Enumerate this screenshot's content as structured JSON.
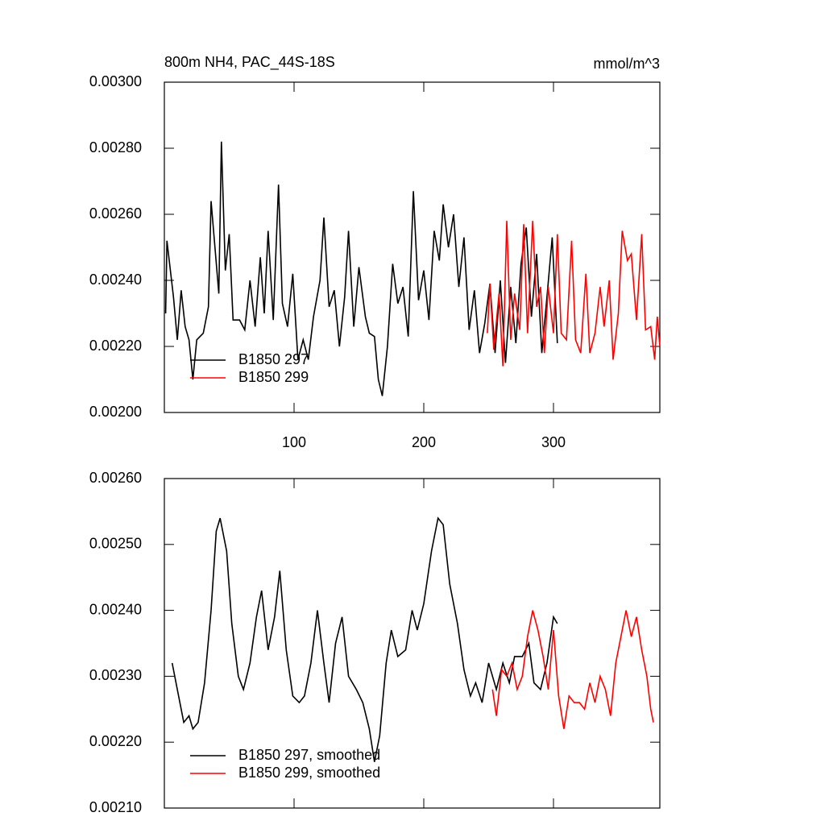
{
  "chart_data": [
    {
      "type": "line",
      "title": "800m NH4, PAC_44S-18S",
      "units": "mmol/m^3",
      "xlim": [
        0,
        382
      ],
      "xticks": [
        100,
        200,
        300
      ],
      "show_xtick_labels": true,
      "ylim": [
        0.002,
        0.003
      ],
      "yticks": [
        {
          "value": 0.002,
          "label": "0.00200"
        },
        {
          "value": 0.0022,
          "label": "0.00220"
        },
        {
          "value": 0.0024,
          "label": "0.00240"
        },
        {
          "value": 0.0026,
          "label": "0.00260"
        },
        {
          "value": 0.0028,
          "label": "0.00280"
        },
        {
          "value": 0.003,
          "label": "0.00300"
        }
      ],
      "legend": "lower left",
      "series": [
        {
          "name": "B1850 297",
          "color": "#000000",
          "x": [
            1,
            2,
            7,
            10,
            13,
            16,
            19,
            22,
            25,
            30,
            34,
            36,
            39,
            42,
            44,
            47,
            50,
            53,
            58,
            62,
            66,
            70,
            74,
            77,
            80,
            84,
            88,
            91,
            95,
            99,
            103,
            107,
            111,
            115,
            120,
            123,
            127,
            131,
            135,
            139,
            142,
            146,
            150,
            155,
            158,
            162,
            165,
            168,
            172,
            176,
            180,
            184,
            188,
            192,
            196,
            200,
            204,
            208,
            212,
            215,
            219,
            223,
            227,
            231,
            235,
            239,
            243,
            247,
            251,
            255,
            259,
            263,
            267,
            271,
            275,
            279,
            283,
            287,
            291,
            295,
            299,
            303
          ],
          "values": [
            0.0023,
            0.00252,
            0.00235,
            0.00222,
            0.00237,
            0.00226,
            0.00222,
            0.0021,
            0.00222,
            0.00224,
            0.00232,
            0.00264,
            0.0025,
            0.00236,
            0.00282,
            0.00243,
            0.00254,
            0.00228,
            0.00228,
            0.00225,
            0.0024,
            0.00226,
            0.00247,
            0.0023,
            0.00255,
            0.00228,
            0.00269,
            0.00233,
            0.00226,
            0.00242,
            0.00216,
            0.00222,
            0.00216,
            0.00229,
            0.0024,
            0.00259,
            0.00232,
            0.00237,
            0.0022,
            0.00235,
            0.00255,
            0.00226,
            0.00244,
            0.00229,
            0.00224,
            0.00223,
            0.0021,
            0.00205,
            0.0022,
            0.00245,
            0.00233,
            0.00238,
            0.00223,
            0.00267,
            0.00234,
            0.00243,
            0.00228,
            0.00255,
            0.00246,
            0.00263,
            0.0025,
            0.0026,
            0.00238,
            0.00253,
            0.00225,
            0.00237,
            0.00218,
            0.00227,
            0.00239,
            0.00218,
            0.0024,
            0.00215,
            0.00238,
            0.00221,
            0.00245,
            0.00256,
            0.00229,
            0.00248,
            0.00218,
            0.00235,
            0.00253,
            0.00221
          ]
        },
        {
          "name": "B1850 299",
          "color": "#ff0000",
          "x": [
            249,
            251,
            254,
            258,
            261,
            264,
            267,
            270,
            274,
            277,
            280,
            284,
            287,
            290,
            293,
            296,
            300,
            303,
            306,
            310,
            314,
            317,
            321,
            325,
            328,
            332,
            336,
            339,
            343,
            346,
            350,
            353,
            357,
            360,
            364,
            368,
            371,
            375,
            378,
            380,
            382
          ],
          "values": [
            0.00224,
            0.00239,
            0.00219,
            0.00236,
            0.00214,
            0.00258,
            0.00222,
            0.00236,
            0.00225,
            0.00257,
            0.00224,
            0.00258,
            0.00232,
            0.00238,
            0.00218,
            0.00238,
            0.00224,
            0.00254,
            0.00224,
            0.00222,
            0.00252,
            0.00222,
            0.00218,
            0.00242,
            0.00218,
            0.00224,
            0.00238,
            0.00226,
            0.0024,
            0.00216,
            0.0023,
            0.00255,
            0.00246,
            0.00248,
            0.00228,
            0.00254,
            0.00225,
            0.00226,
            0.00216,
            0.00229,
            0.0022
          ]
        }
      ]
    },
    {
      "type": "line",
      "xlim": [
        0,
        382
      ],
      "xticks": [
        100,
        200,
        300
      ],
      "show_xtick_labels": false,
      "ylim": [
        0.0021,
        0.0026
      ],
      "yticks": [
        {
          "value": 0.0021,
          "label": "0.00210"
        },
        {
          "value": 0.0022,
          "label": "0.00220"
        },
        {
          "value": 0.0023,
          "label": "0.00230"
        },
        {
          "value": 0.0024,
          "label": "0.00240"
        },
        {
          "value": 0.0025,
          "label": "0.00250"
        },
        {
          "value": 0.0026,
          "label": "0.00260"
        }
      ],
      "legend": "lower left",
      "series": [
        {
          "name": "B1850 297, smoothed",
          "color": "#000000",
          "x": [
            6,
            10,
            15,
            19,
            22,
            26,
            31,
            36,
            40,
            43,
            48,
            52,
            57,
            61,
            66,
            71,
            75,
            80,
            85,
            89,
            94,
            99,
            104,
            108,
            113,
            118,
            123,
            127,
            132,
            137,
            142,
            148,
            153,
            158,
            162,
            166,
            171,
            175,
            180,
            186,
            191,
            195,
            200,
            206,
            211,
            215,
            220,
            226,
            231,
            236,
            240,
            245,
            250,
            256,
            261,
            266,
            270,
            276,
            281,
            285,
            290,
            295,
            300,
            303
          ],
          "values": [
            0.00232,
            0.00228,
            0.00223,
            0.00224,
            0.00222,
            0.00223,
            0.00229,
            0.0024,
            0.00252,
            0.00254,
            0.00249,
            0.00238,
            0.0023,
            0.00228,
            0.00232,
            0.00239,
            0.00243,
            0.00234,
            0.00239,
            0.00246,
            0.00234,
            0.00227,
            0.00226,
            0.00227,
            0.00232,
            0.0024,
            0.00232,
            0.00226,
            0.00235,
            0.00239,
            0.0023,
            0.00228,
            0.00226,
            0.00222,
            0.00217,
            0.00221,
            0.00232,
            0.00237,
            0.00233,
            0.00234,
            0.0024,
            0.00237,
            0.00241,
            0.00249,
            0.00254,
            0.00253,
            0.00244,
            0.00238,
            0.00231,
            0.00227,
            0.00229,
            0.00226,
            0.00232,
            0.00228,
            0.00232,
            0.00229,
            0.00233,
            0.00233,
            0.00235,
            0.00229,
            0.00228,
            0.00232,
            0.00239,
            0.00238
          ]
        },
        {
          "name": "B1850 299, smoothed",
          "color": "#ff0000",
          "x": [
            253,
            256,
            260,
            264,
            268,
            272,
            276,
            280,
            284,
            288,
            292,
            296,
            300,
            304,
            308,
            312,
            316,
            320,
            324,
            328,
            332,
            336,
            340,
            344,
            348,
            352,
            356,
            360,
            364,
            368,
            372,
            375,
            377
          ],
          "values": [
            0.00228,
            0.00224,
            0.00231,
            0.0023,
            0.00232,
            0.00228,
            0.0023,
            0.00236,
            0.0024,
            0.00237,
            0.00233,
            0.00228,
            0.00237,
            0.00227,
            0.00222,
            0.00227,
            0.00226,
            0.00226,
            0.00225,
            0.00229,
            0.00226,
            0.0023,
            0.00228,
            0.00224,
            0.00232,
            0.00236,
            0.0024,
            0.00236,
            0.00239,
            0.00234,
            0.0023,
            0.00225,
            0.00223
          ]
        }
      ]
    }
  ]
}
